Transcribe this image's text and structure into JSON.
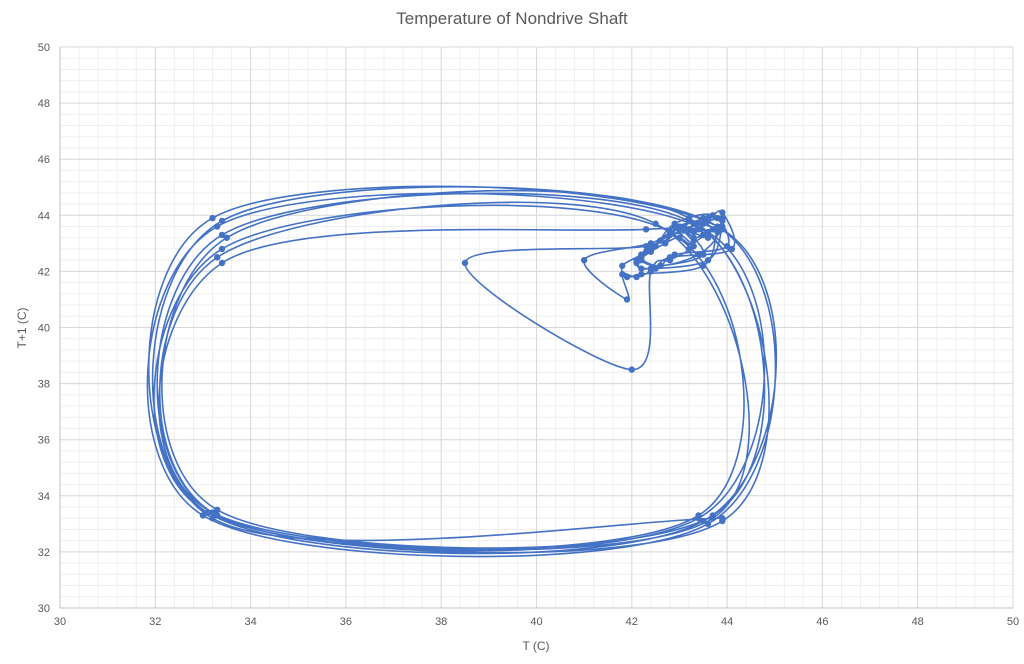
{
  "chart_data": {
    "type": "scatter",
    "title": "Temperature of Nondrive Shaft",
    "xlabel": "T (C)",
    "ylabel": "T+1 (C)",
    "xlim": [
      30,
      50
    ],
    "ylim": [
      30,
      50
    ],
    "x_ticks": [
      30,
      32,
      34,
      36,
      38,
      40,
      42,
      44,
      46,
      48,
      50
    ],
    "y_ticks": [
      30,
      32,
      34,
      36,
      38,
      40,
      42,
      44,
      46,
      48,
      50
    ],
    "grid": true,
    "minor_grid": true,
    "legend": "none",
    "line_style": "smooth lines with markers",
    "color": "#4472C4",
    "series": [
      {
        "x": [
          43.0,
          43.3,
          42.9,
          43.6,
          43.2,
          43.8,
          43.4,
          42.6,
          42.2,
          42.5,
          42.9,
          43.7,
          44.0,
          42.9,
          42.6,
          42.2,
          42.1,
          42.4,
          42.8,
          43.3,
          43.4,
          43.5,
          43.3,
          43.1,
          43.6,
          43.9,
          43.8,
          43.5,
          42.2,
          41.9,
          41.8,
          42.2,
          42.6,
          43.1,
          43.5,
          43.7,
          43.5,
          43.3,
          43.2,
          43.5,
          43.9,
          43.9,
          43.6,
          42.4,
          42.1,
          42.3,
          42.7,
          43.0,
          43.6,
          43.9,
          44.1,
          42.8,
          42.5,
          42.1,
          41.8,
          41.9,
          41.0,
          42.4,
          43.0,
          43.5,
          42.6,
          42.2,
          42.4,
          42.7,
          43.0,
          43.2,
          42.8,
          42.4,
          42.0,
          38.5,
          42.3,
          42.9,
          43.6,
          43.8
        ],
        "y": [
          43.2,
          42.9,
          43.6,
          43.2,
          43.8,
          43.4,
          42.6,
          42.2,
          42.5,
          42.9,
          43.7,
          44.0,
          42.9,
          42.6,
          42.2,
          42.1,
          42.4,
          42.8,
          43.3,
          43.4,
          43.5,
          43.3,
          43.1,
          43.6,
          43.9,
          43.8,
          43.5,
          42.2,
          41.9,
          41.8,
          42.2,
          42.6,
          43.1,
          43.5,
          43.7,
          43.5,
          43.3,
          43.2,
          43.5,
          43.9,
          43.9,
          43.6,
          42.4,
          42.1,
          42.3,
          42.7,
          43.0,
          43.6,
          43.9,
          44.1,
          42.8,
          42.5,
          42.1,
          41.8,
          41.9,
          41.0,
          42.4,
          43.0,
          43.5,
          42.6,
          42.2,
          42.4,
          42.7,
          43.0,
          43.2,
          42.8,
          42.4,
          42.0,
          38.5,
          42.3,
          42.9,
          43.6,
          43.8,
          43.9
        ]
      },
      {
        "x": [
          43.9,
          33.2,
          33.2,
          43.9,
          43.5,
          33.1,
          33.4,
          43.8,
          43.6,
          33.0,
          33.3,
          43.6,
          43.4,
          33.2,
          33.4,
          43.3,
          43.7,
          33.3,
          33.5,
          43.2,
          43.9,
          33.1,
          33.4,
          42.8,
          43.4,
          33.3,
          33.3,
          42.5,
          43.7,
          33.2,
          33.4,
          42.3,
          43.5
        ],
        "y": [
          33.2,
          33.2,
          43.9,
          43.5,
          33.1,
          33.4,
          43.8,
          43.6,
          33.0,
          33.3,
          43.6,
          43.4,
          33.2,
          33.4,
          43.3,
          43.7,
          33.3,
          33.5,
          43.2,
          43.9,
          33.1,
          33.4,
          42.8,
          43.4,
          33.3,
          33.3,
          42.5,
          43.7,
          33.2,
          33.4,
          42.3,
          43.5,
          43.3
        ]
      }
    ]
  }
}
